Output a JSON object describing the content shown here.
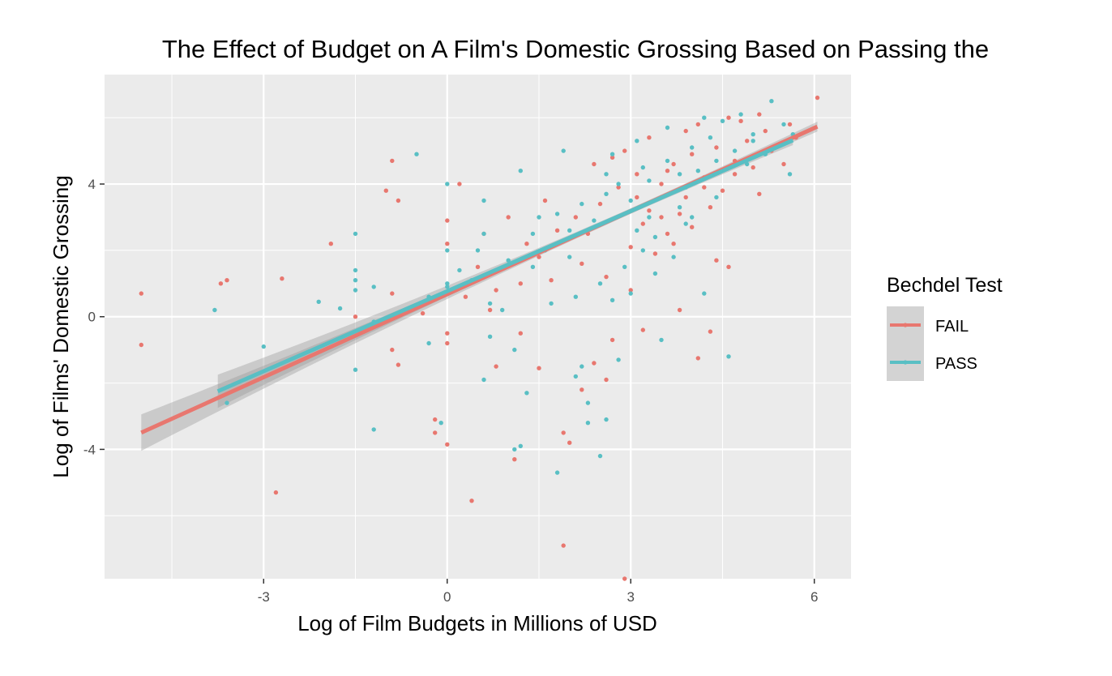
{
  "chart_data": {
    "type": "scatter",
    "title": "The Effect of Budget on A Film's Domestic Grossing Based on Passing the",
    "xlabel": "Log of Film Budgets in Millions of USD",
    "ylabel": "Log of Films' Domestic Grossing",
    "xlim": [
      -5.6,
      6.6
    ],
    "ylim": [
      -7.9,
      7.3
    ],
    "x_ticks": [
      -3,
      0,
      3,
      6
    ],
    "x_tick_labels": [
      "-3",
      "0",
      "3",
      "6"
    ],
    "y_ticks": [
      -4,
      0,
      4
    ],
    "y_tick_labels": [
      "-4",
      "0",
      "4"
    ],
    "grid": true,
    "legend": {
      "title": "Bechdel Test",
      "position": "right",
      "entries": [
        {
          "label": "FAIL",
          "color": "#F8766D"
        },
        {
          "label": "PASS",
          "color": "#00BFC4"
        }
      ]
    },
    "colors": {
      "FAIL": "#E8776F",
      "PASS": "#59BFC4",
      "panel_bg": "#EBEBEB",
      "grid_major": "#FFFFFF",
      "band": "#999999"
    },
    "series": [
      {
        "name": "FAIL",
        "fit": {
          "x_start": -5.0,
          "x_end": 6.05,
          "slope": 0.835,
          "intercept": 0.68,
          "se_at_ends": 0.55
        },
        "points": [
          [
            -5.0,
            0.7
          ],
          [
            -5.0,
            -0.85
          ],
          [
            -3.7,
            1.0
          ],
          [
            -3.6,
            1.1
          ],
          [
            -2.7,
            1.15
          ],
          [
            -2.8,
            -5.3
          ],
          [
            -1.9,
            2.2
          ],
          [
            -1.5,
            0.0
          ],
          [
            -0.9,
            4.7
          ],
          [
            -0.8,
            3.5
          ],
          [
            -1.0,
            3.8
          ],
          [
            -0.9,
            0.7
          ],
          [
            -0.8,
            -1.45
          ],
          [
            -0.9,
            -1.0
          ],
          [
            -0.4,
            0.1
          ],
          [
            -0.2,
            -3.1
          ],
          [
            -0.2,
            -3.5
          ],
          [
            0.0,
            -3.85
          ],
          [
            0.0,
            2.9
          ],
          [
            0.0,
            2.2
          ],
          [
            0.0,
            -0.5
          ],
          [
            0.0,
            -0.8
          ],
          [
            0.2,
            4.0
          ],
          [
            0.4,
            -5.55
          ],
          [
            0.5,
            1.5
          ],
          [
            0.6,
            2.5
          ],
          [
            0.7,
            0.2
          ],
          [
            0.8,
            -1.5
          ],
          [
            1.0,
            3.0
          ],
          [
            1.2,
            1.0
          ],
          [
            1.1,
            -4.3
          ],
          [
            1.2,
            -0.5
          ],
          [
            1.5,
            -1.55
          ],
          [
            1.6,
            3.5
          ],
          [
            1.9,
            -6.9
          ],
          [
            1.9,
            -3.5
          ],
          [
            2.0,
            -3.8
          ],
          [
            2.2,
            -2.2
          ],
          [
            2.4,
            -1.4
          ],
          [
            2.6,
            -1.9
          ],
          [
            2.7,
            -0.7
          ],
          [
            2.9,
            -7.9
          ],
          [
            3.0,
            0.8
          ],
          [
            3.2,
            -0.4
          ],
          [
            3.8,
            0.2
          ],
          [
            4.1,
            -1.25
          ],
          [
            4.3,
            -0.45
          ],
          [
            4.4,
            1.7
          ],
          [
            4.6,
            1.5
          ],
          [
            5.1,
            3.7
          ],
          [
            5.5,
            4.6
          ],
          [
            6.05,
            6.6
          ],
          [
            5.7,
            5.4
          ],
          [
            5.6,
            5.8
          ],
          [
            1.3,
            2.2
          ],
          [
            1.5,
            1.8
          ],
          [
            1.8,
            2.6
          ],
          [
            2.1,
            3.0
          ],
          [
            2.3,
            2.5
          ],
          [
            2.5,
            3.4
          ],
          [
            2.8,
            3.9
          ],
          [
            3.1,
            4.3
          ],
          [
            3.3,
            3.2
          ],
          [
            3.5,
            4.0
          ],
          [
            3.7,
            4.6
          ],
          [
            3.9,
            3.6
          ],
          [
            4.0,
            4.9
          ],
          [
            4.2,
            4.2
          ],
          [
            4.4,
            5.1
          ],
          [
            4.5,
            3.8
          ],
          [
            4.7,
            4.7
          ],
          [
            4.9,
            5.3
          ],
          [
            5.0,
            4.5
          ],
          [
            5.2,
            5.6
          ],
          [
            5.3,
            5.0
          ],
          [
            3.0,
            2.1
          ],
          [
            3.2,
            2.8
          ],
          [
            3.4,
            1.9
          ],
          [
            3.6,
            2.5
          ],
          [
            3.8,
            3.1
          ],
          [
            2.6,
            1.2
          ],
          [
            2.2,
            1.6
          ],
          [
            1.7,
            1.1
          ],
          [
            2.9,
            5.0
          ],
          [
            3.3,
            5.4
          ],
          [
            3.9,
            5.6
          ],
          [
            4.1,
            5.8
          ],
          [
            4.6,
            6.0
          ],
          [
            4.8,
            5.9
          ],
          [
            5.1,
            6.1
          ],
          [
            3.5,
            3.0
          ],
          [
            3.7,
            2.2
          ],
          [
            4.0,
            2.7
          ],
          [
            4.3,
            3.3
          ],
          [
            2.4,
            4.6
          ],
          [
            2.7,
            4.8
          ],
          [
            3.1,
            3.6
          ],
          [
            3.6,
            4.4
          ],
          [
            4.2,
            3.9
          ],
          [
            4.7,
            4.3
          ],
          [
            0.8,
            0.8
          ],
          [
            0.3,
            0.6
          ]
        ]
      },
      {
        "name": "PASS",
        "fit": {
          "x_start": -3.75,
          "x_end": 5.65,
          "slope": 0.805,
          "intercept": 0.77,
          "se_at_ends": 0.5
        },
        "points": [
          [
            -3.8,
            0.2
          ],
          [
            -3.6,
            -2.6
          ],
          [
            -3.0,
            -0.9
          ],
          [
            -2.1,
            0.45
          ],
          [
            -1.75,
            0.25
          ],
          [
            -1.5,
            2.5
          ],
          [
            -1.5,
            1.4
          ],
          [
            -1.5,
            1.1
          ],
          [
            -1.5,
            0.8
          ],
          [
            -1.5,
            -1.6
          ],
          [
            -1.2,
            0.9
          ],
          [
            -1.2,
            -3.4
          ],
          [
            -1.2,
            -0.15
          ],
          [
            -0.5,
            4.9
          ],
          [
            -0.3,
            -0.8
          ],
          [
            -0.3,
            0.6
          ],
          [
            -0.1,
            -3.2
          ],
          [
            0.0,
            4.0
          ],
          [
            0.0,
            2.0
          ],
          [
            0.0,
            1.0
          ],
          [
            0.0,
            0.9
          ],
          [
            0.2,
            1.4
          ],
          [
            0.4,
            1.1
          ],
          [
            0.6,
            -1.9
          ],
          [
            0.6,
            3.5
          ],
          [
            0.6,
            2.5
          ],
          [
            0.7,
            -0.6
          ],
          [
            0.7,
            0.4
          ],
          [
            0.9,
            0.2
          ],
          [
            1.1,
            -1.0
          ],
          [
            1.1,
            -4.0
          ],
          [
            1.2,
            -3.9
          ],
          [
            1.3,
            -2.3
          ],
          [
            1.4,
            1.5
          ],
          [
            1.5,
            3.0
          ],
          [
            1.8,
            -4.7
          ],
          [
            1.9,
            5.0
          ],
          [
            2.0,
            1.8
          ],
          [
            2.1,
            -1.8
          ],
          [
            2.2,
            -1.5
          ],
          [
            2.3,
            -3.2
          ],
          [
            2.3,
            -2.6
          ],
          [
            2.5,
            -4.2
          ],
          [
            2.6,
            4.3
          ],
          [
            2.6,
            -3.1
          ],
          [
            2.7,
            0.5
          ],
          [
            2.8,
            -1.3
          ],
          [
            3.0,
            0.7
          ],
          [
            3.2,
            4.5
          ],
          [
            3.4,
            1.3
          ],
          [
            3.5,
            -0.7
          ],
          [
            3.9,
            2.8
          ],
          [
            4.2,
            0.7
          ],
          [
            4.6,
            -1.2
          ],
          [
            5.0,
            5.5
          ],
          [
            5.3,
            6.5
          ],
          [
            5.6,
            4.3
          ],
          [
            5.65,
            5.5
          ],
          [
            5.5,
            5.8
          ],
          [
            1.4,
            2.5
          ],
          [
            1.6,
            2.0
          ],
          [
            1.8,
            3.1
          ],
          [
            2.0,
            2.6
          ],
          [
            2.2,
            3.4
          ],
          [
            2.4,
            2.9
          ],
          [
            2.6,
            3.7
          ],
          [
            2.8,
            4.0
          ],
          [
            3.0,
            3.5
          ],
          [
            3.1,
            2.6
          ],
          [
            3.3,
            4.1
          ],
          [
            3.5,
            3.6
          ],
          [
            3.6,
            4.7
          ],
          [
            3.8,
            4.3
          ],
          [
            3.9,
            3.9
          ],
          [
            4.0,
            5.1
          ],
          [
            4.1,
            4.4
          ],
          [
            4.3,
            5.4
          ],
          [
            4.4,
            4.7
          ],
          [
            4.5,
            5.9
          ],
          [
            4.7,
            5.0
          ],
          [
            4.8,
            6.1
          ],
          [
            4.9,
            4.6
          ],
          [
            5.0,
            5.3
          ],
          [
            5.2,
            4.9
          ],
          [
            3.2,
            2.0
          ],
          [
            3.4,
            2.4
          ],
          [
            3.7,
            1.8
          ],
          [
            4.0,
            3.0
          ],
          [
            2.9,
            1.5
          ],
          [
            2.5,
            1.0
          ],
          [
            2.1,
            0.6
          ],
          [
            1.7,
            0.4
          ],
          [
            3.1,
            5.3
          ],
          [
            3.6,
            5.7
          ],
          [
            4.2,
            6.0
          ],
          [
            2.7,
            4.9
          ],
          [
            3.3,
            3.0
          ],
          [
            3.8,
            3.3
          ],
          [
            4.4,
            3.6
          ],
          [
            1.2,
            4.4
          ],
          [
            1.0,
            1.7
          ],
          [
            0.5,
            2.0
          ]
        ]
      }
    ]
  }
}
